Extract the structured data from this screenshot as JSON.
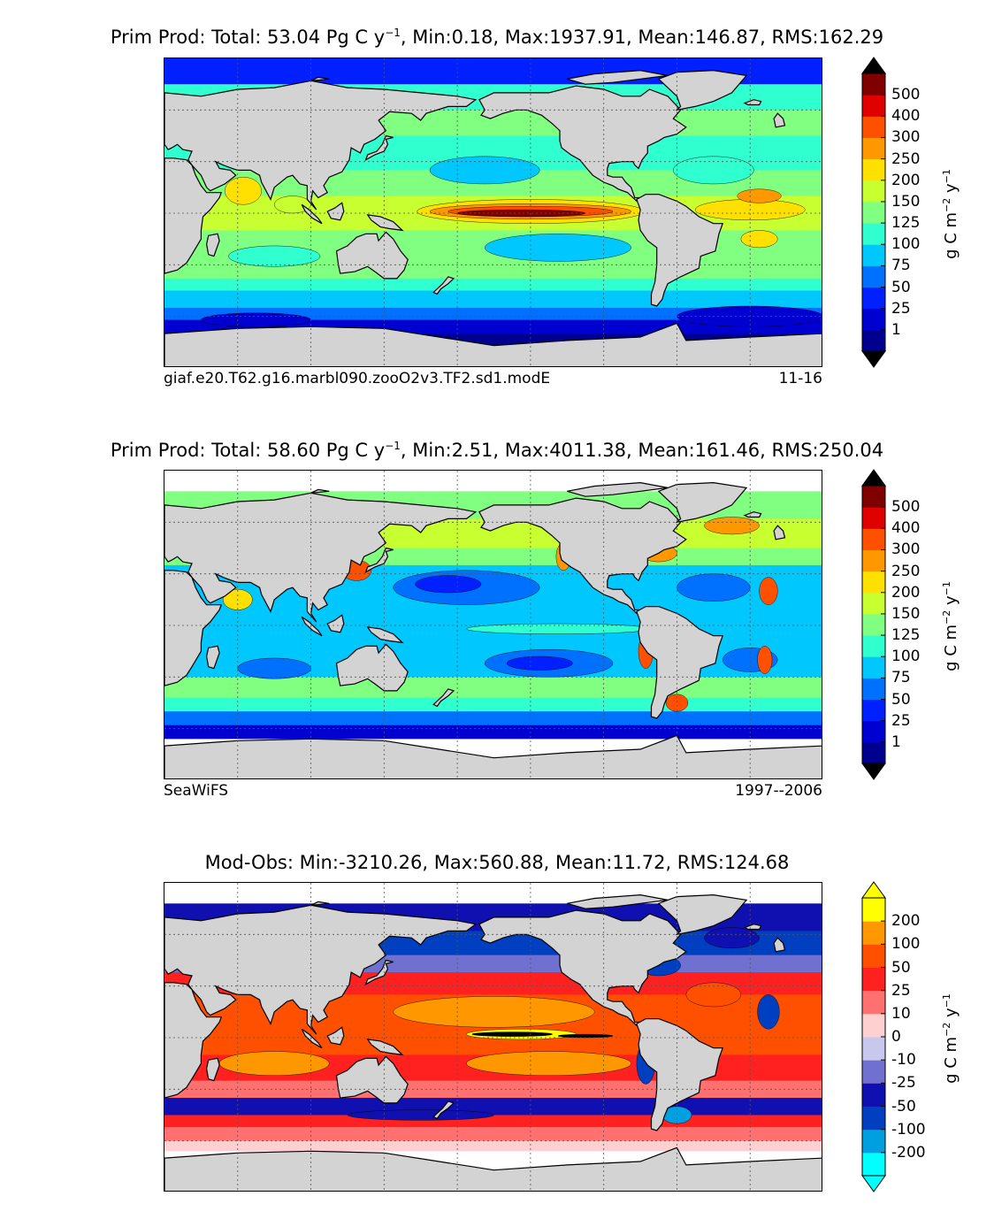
{
  "units_label_base": "g C m",
  "units_exp1": "−2",
  "units_mid": " y",
  "units_exp2": "−1",
  "panels": [
    {
      "title_prefix": "Prim Prod: Total: 53.04 Pg C y",
      "title_exp": "−1",
      "title_suffix": ", Min:0.18, Max:1937.91, Mean:146.87, RMS:162.29",
      "caption_left": "giaf.e20.T62.g16.marbl090.zooO2v3.TF2.sd1.modE",
      "caption_right": "11-16",
      "colorbar": {
        "ticks": [
          "1",
          "25",
          "50",
          "75",
          "100",
          "125",
          "150",
          "200",
          "250",
          "300",
          "400",
          "500"
        ],
        "colors": [
          "#00008f",
          "#0000d0",
          "#0020ff",
          "#0070ff",
          "#00c8ff",
          "#30ffd0",
          "#80ff80",
          "#c8ff30",
          "#ffe000",
          "#ff9800",
          "#ff5000",
          "#e00000",
          "#800000"
        ],
        "extend_low": "#000000",
        "extend_high": "#000000"
      }
    },
    {
      "title_prefix": "Prim Prod: Total: 58.60 Pg C y",
      "title_exp": "−1",
      "title_suffix": ", Min:2.51, Max:4011.38, Mean:161.46, RMS:250.04",
      "caption_left": "SeaWiFS",
      "caption_right": "1997--2006",
      "colorbar": {
        "ticks": [
          "1",
          "25",
          "50",
          "75",
          "100",
          "125",
          "150",
          "200",
          "250",
          "300",
          "400",
          "500"
        ],
        "colors": [
          "#00008f",
          "#0000d0",
          "#0020ff",
          "#0070ff",
          "#00c8ff",
          "#30ffd0",
          "#80ff80",
          "#c8ff30",
          "#ffe000",
          "#ff9800",
          "#ff5000",
          "#e00000",
          "#800000"
        ],
        "extend_low": "#000000",
        "extend_high": "#000000"
      }
    },
    {
      "title_prefix": "Mod-Obs: Min:-3210.26, Max:560.88, Mean:11.72, RMS:124.68",
      "title_exp": "",
      "title_suffix": "",
      "caption_left": "",
      "caption_right": "",
      "colorbar": {
        "ticks": [
          "-200",
          "-100",
          "-50",
          "-25",
          "-10",
          "0",
          "10",
          "25",
          "50",
          "100",
          "200"
        ],
        "colors": [
          "#00ffff",
          "#00a0e0",
          "#0040c0",
          "#1010b0",
          "#7070d0",
          "#c8c8ee",
          "#ffd0d0",
          "#ff7070",
          "#ff2020",
          "#ff5000",
          "#ff9800",
          "#ffff00"
        ],
        "extend_low": "#00ffff",
        "extend_high": "#ffff00"
      }
    }
  ],
  "colors": {
    "land": "#d3d3d3",
    "missing": "#ffffff"
  }
}
